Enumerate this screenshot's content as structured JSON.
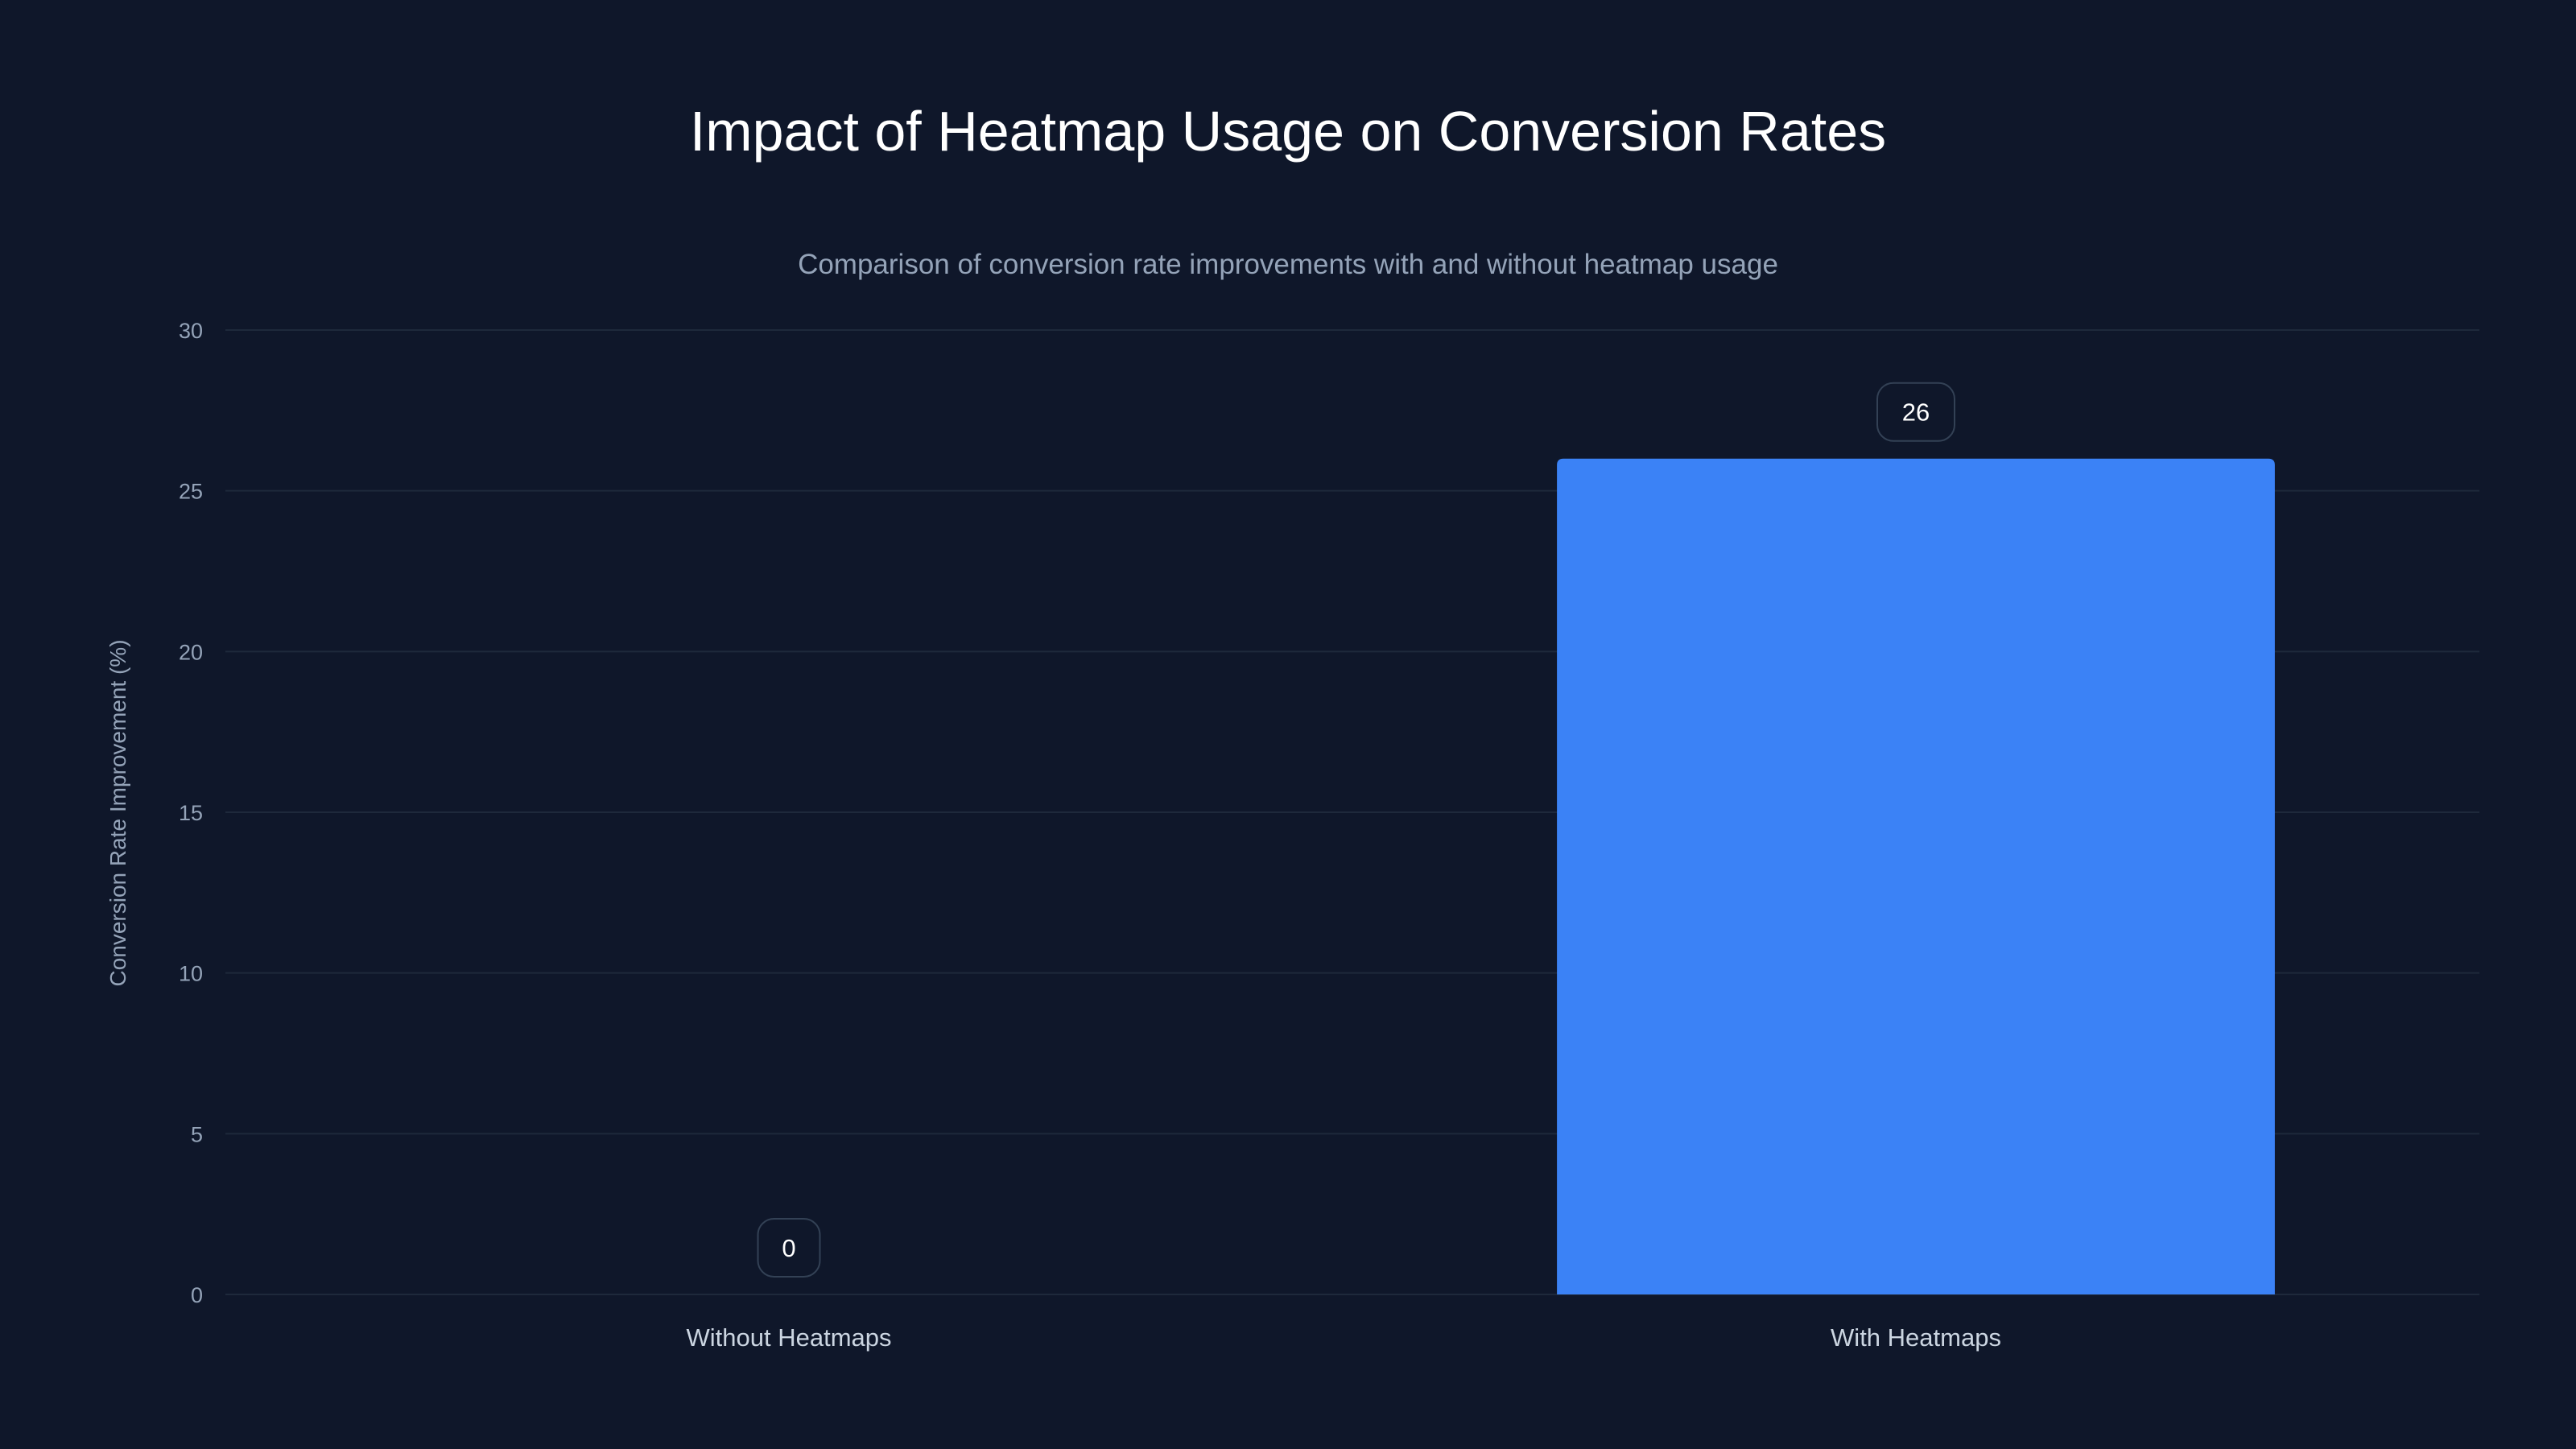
{
  "chart_data": {
    "type": "bar",
    "title": "Impact of Heatmap Usage on Conversion Rates",
    "subtitle": "Comparison of conversion rate improvements with and without heatmap usage",
    "xlabel": "",
    "ylabel": "Conversion Rate Improvement (%)",
    "categories": [
      "Without Heatmaps",
      "With Heatmaps"
    ],
    "values": [
      0,
      26
    ],
    "ylim": [
      0,
      30
    ],
    "yticks": [
      0,
      5,
      10,
      15,
      20,
      25,
      30
    ],
    "grid": true,
    "data_labels": true,
    "colors": {
      "bar": "#3b82f6",
      "background": "#0f172a",
      "grid": "#1e293b"
    }
  }
}
